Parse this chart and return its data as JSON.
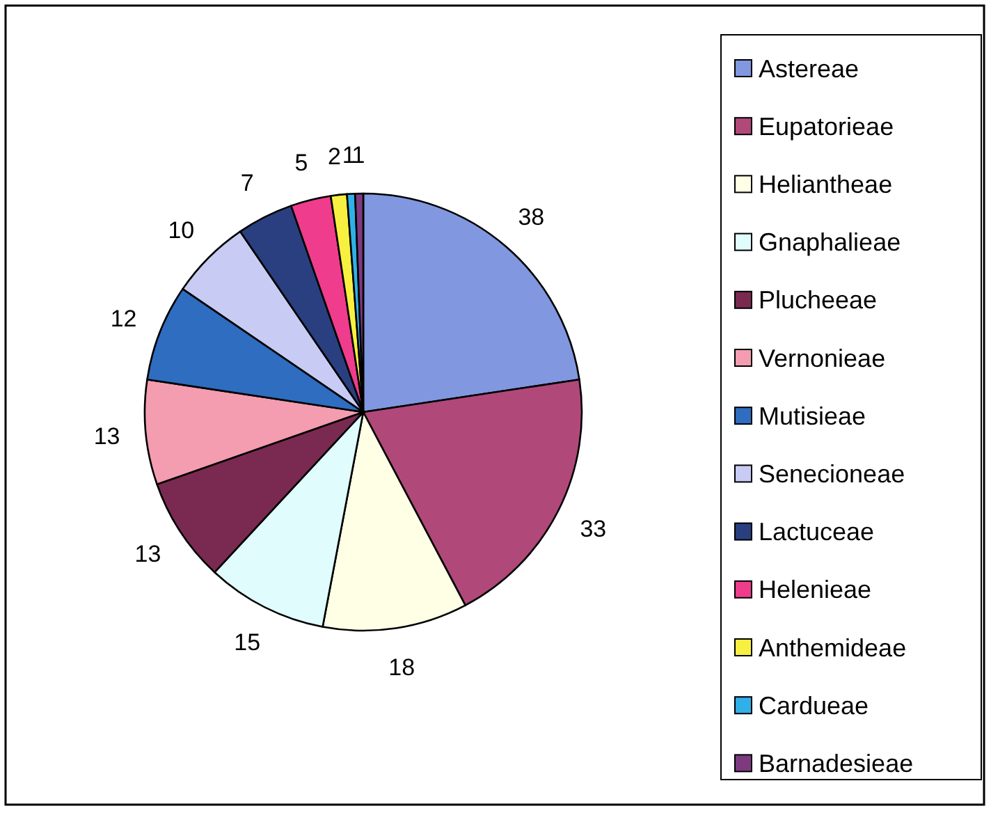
{
  "chart_data": {
    "type": "pie",
    "categories": [
      "Astereae",
      "Eupatorieae",
      "Heliantheae",
      "Gnaphalieae",
      "Plucheeae",
      "Vernonieae",
      "Mutisieae",
      "Senecioneae",
      "Lactuceae",
      "Helenieae",
      "Anthemideae",
      "Cardueae",
      "Barnadesieae"
    ],
    "values": [
      38,
      33,
      18,
      15,
      13,
      13,
      12,
      10,
      7,
      5,
      2,
      1,
      1
    ],
    "colors": [
      "#8197e0",
      "#b0487a",
      "#ffffe6",
      "#e0fcfc",
      "#7a2a50",
      "#f49cb0",
      "#2e6dc0",
      "#c8ccf4",
      "#2a3f80",
      "#f03c8c",
      "#f8f040",
      "#30b0e8",
      "#7e3a80"
    ],
    "data_labels": true,
    "legend": "right"
  }
}
